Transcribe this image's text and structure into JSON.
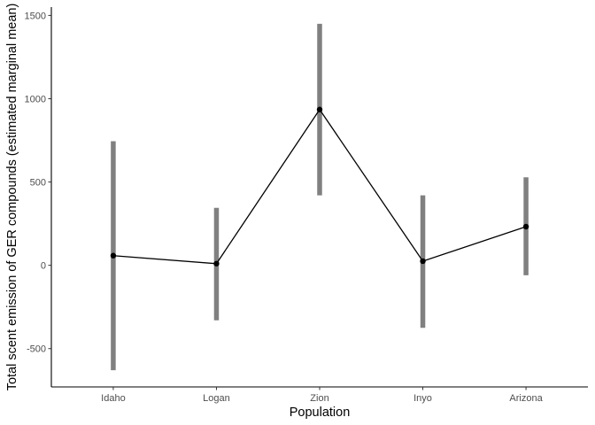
{
  "chart_data": {
    "type": "line",
    "title": "",
    "xlabel": "Population",
    "ylabel": "Total scent emission of GER compounds (estimated marginal mean)",
    "categories": [
      "Idaho",
      "Logan",
      "Zion",
      "Inyo",
      "Arizona"
    ],
    "series": [
      {
        "values": [
          58,
          10,
          935,
          25,
          232
        ],
        "lower": [
          -630,
          -330,
          420,
          -375,
          -60
        ],
        "upper": [
          745,
          345,
          1450,
          420,
          528
        ]
      }
    ],
    "ylim": [
      -730,
      1550
    ],
    "yticks": [
      -500,
      0,
      500,
      1000,
      1500
    ],
    "ytick_labels": [
      "-500",
      "0",
      "500",
      "1000",
      "1500"
    ],
    "grid": false,
    "legend": "none",
    "colors": {
      "line": "#000000",
      "point": "#000000",
      "errorbar": "#808080",
      "axis": "#000000",
      "tick_label": "#4d4d4d"
    }
  }
}
